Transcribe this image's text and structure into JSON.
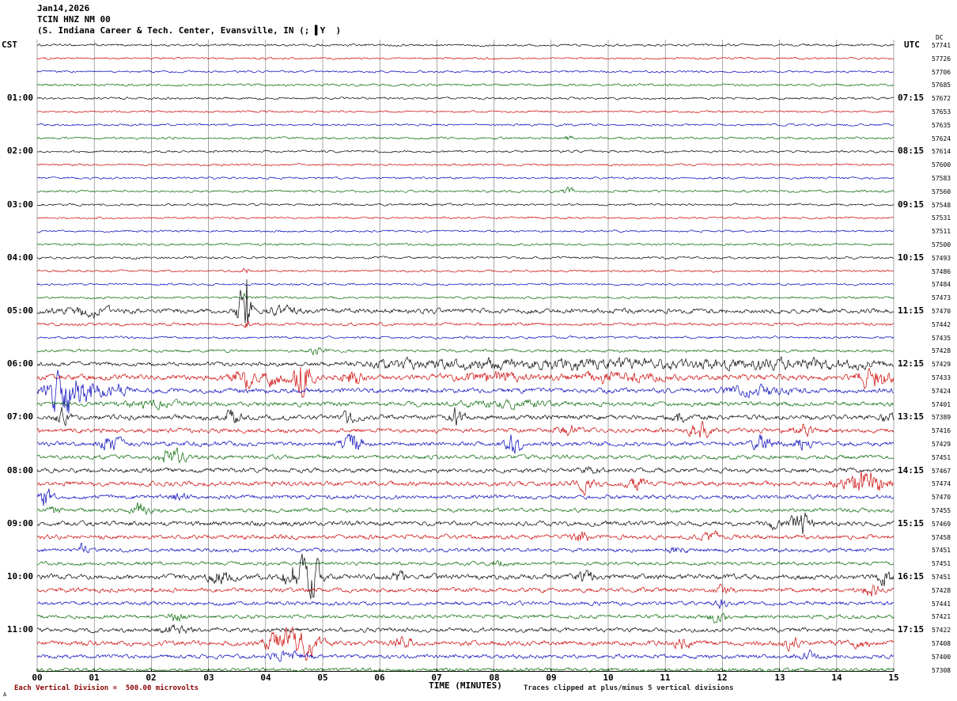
{
  "header": {
    "date": "Jan14,2026",
    "station": "TCIN HNZ NM 00",
    "location": "(S. Indiana Career & Tech. Center, Evansville, IN (; ▌Y  )"
  },
  "footer": {
    "left_mark": "A",
    "left": "Each Vertical Division =  500.00 microvolts",
    "right": "Traces clipped at plus/minus 5 vertical divisions"
  },
  "chart_data": {
    "type": "line",
    "title": "TCIN HNZ NM 00 helicorder seismogram",
    "x_label": "TIME (MINUTES)",
    "x_range": [
      0,
      15
    ],
    "x_ticks": [
      "00",
      "01",
      "02",
      "03",
      "04",
      "05",
      "06",
      "07",
      "08",
      "09",
      "10",
      "11",
      "12",
      "13",
      "14",
      "15"
    ],
    "left_axis_label": "CST",
    "right_axis_label": "UTC",
    "right_value_header": "DC",
    "division_microvolts": "500.00",
    "clip_divisions": 5,
    "grid": "on",
    "palette": {
      "black": "#000000",
      "red": "#cc0000",
      "blue": "#0000bb",
      "green": "#006600",
      "grid": "#6f6f6f"
    },
    "colors_cycle": [
      "black",
      "red",
      "blue",
      "green"
    ],
    "rows": [
      {
        "cst": "",
        "utc": "",
        "dc": "57741",
        "c": "black",
        "n": 0.7,
        "ev": []
      },
      {
        "cst": "",
        "utc": "",
        "dc": "57726",
        "c": "red",
        "n": 0.6,
        "ev": []
      },
      {
        "cst": "",
        "utc": "",
        "dc": "57706",
        "c": "blue",
        "n": 0.65,
        "ev": []
      },
      {
        "cst": "",
        "utc": "",
        "dc": "57685",
        "c": "green",
        "n": 0.7,
        "ev": []
      },
      {
        "cst": "01:00",
        "utc": "07:15",
        "dc": "57672",
        "c": "black",
        "n": 0.7,
        "ev": []
      },
      {
        "cst": "",
        "utc": "",
        "dc": "57653",
        "c": "red",
        "n": 0.6,
        "ev": []
      },
      {
        "cst": "",
        "utc": "",
        "dc": "57635",
        "c": "blue",
        "n": 0.65,
        "ev": []
      },
      {
        "cst": "",
        "utc": "",
        "dc": "57624",
        "c": "green",
        "n": 0.7,
        "ev": [
          [
            9.3,
            1.5,
            0.05
          ]
        ]
      },
      {
        "cst": "02:00",
        "utc": "08:15",
        "dc": "57614",
        "c": "black",
        "n": 0.7,
        "ev": []
      },
      {
        "cst": "",
        "utc": "",
        "dc": "57600",
        "c": "red",
        "n": 0.6,
        "ev": []
      },
      {
        "cst": "",
        "utc": "",
        "dc": "57583",
        "c": "blue",
        "n": 0.65,
        "ev": []
      },
      {
        "cst": "",
        "utc": "",
        "dc": "57560",
        "c": "green",
        "n": 0.7,
        "ev": [
          [
            9.3,
            2.5,
            0.06
          ]
        ]
      },
      {
        "cst": "03:00",
        "utc": "09:15",
        "dc": "57548",
        "c": "black",
        "n": 0.7,
        "ev": []
      },
      {
        "cst": "",
        "utc": "",
        "dc": "57531",
        "c": "red",
        "n": 0.6,
        "ev": []
      },
      {
        "cst": "",
        "utc": "",
        "dc": "57511",
        "c": "blue",
        "n": 0.65,
        "ev": []
      },
      {
        "cst": "",
        "utc": "",
        "dc": "57500",
        "c": "green",
        "n": 0.7,
        "ev": []
      },
      {
        "cst": "04:00",
        "utc": "10:15",
        "dc": "57493",
        "c": "black",
        "n": 0.75,
        "ev": []
      },
      {
        "cst": "",
        "utc": "",
        "dc": "57486",
        "c": "red",
        "n": 0.65,
        "ev": [
          [
            3.65,
            3,
            0.03
          ]
        ]
      },
      {
        "cst": "",
        "utc": "",
        "dc": "57484",
        "c": "blue",
        "n": 0.65,
        "ev": []
      },
      {
        "cst": "",
        "utc": "",
        "dc": "57473",
        "c": "green",
        "n": 0.7,
        "ev": [
          [
            3.65,
            4,
            0.03
          ]
        ]
      },
      {
        "cst": "05:00",
        "utc": "11:15",
        "dc": "57470",
        "c": "black",
        "n": 1.5,
        "ev": [
          [
            0.9,
            2.5,
            0.3
          ],
          [
            3.55,
            8,
            0.05
          ],
          [
            3.67,
            36,
            0.05
          ],
          [
            4.3,
            2,
            0.2
          ]
        ]
      },
      {
        "cst": "",
        "utc": "",
        "dc": "57442",
        "c": "red",
        "n": 0.9,
        "ev": [
          [
            3.67,
            2.5,
            0.04
          ]
        ]
      },
      {
        "cst": "",
        "utc": "",
        "dc": "57435",
        "c": "blue",
        "n": 0.75,
        "ev": []
      },
      {
        "cst": "",
        "utc": "",
        "dc": "57428",
        "c": "green",
        "n": 0.85,
        "ev": [
          [
            4.9,
            2.5,
            0.08
          ]
        ]
      },
      {
        "cst": "06:00",
        "utc": "12:15",
        "dc": "57429",
        "c": "black",
        "n": 1.3,
        "ev": [
          [
            6.2,
            2,
            0.5
          ],
          [
            7.6,
            2.2,
            0.6
          ],
          [
            9.2,
            2.2,
            0.8
          ],
          [
            11.3,
            2.2,
            1.0
          ],
          [
            13.6,
            2.4,
            0.9
          ]
        ]
      },
      {
        "cst": "",
        "utc": "",
        "dc": "57433",
        "c": "red",
        "n": 1.7,
        "ev": [
          [
            3.6,
            6,
            0.12
          ],
          [
            4.1,
            4,
            0.15
          ],
          [
            4.65,
            13,
            0.1
          ],
          [
            5.5,
            5,
            0.12
          ],
          [
            7.9,
            2.5,
            0.4
          ],
          [
            10.1,
            2.5,
            0.5
          ],
          [
            14.65,
            7,
            0.18
          ]
        ]
      },
      {
        "cst": "",
        "utc": "",
        "dc": "57424",
        "c": "blue",
        "n": 1.5,
        "ev": [
          [
            0.45,
            15,
            0.18
          ],
          [
            0.85,
            7,
            0.15
          ],
          [
            1.35,
            3.5,
            0.2
          ],
          [
            12.6,
            2.2,
            0.4
          ]
        ]
      },
      {
        "cst": "",
        "utc": "",
        "dc": "57401",
        "c": "green",
        "n": 1.4,
        "ev": [
          [
            2.0,
            2,
            0.3
          ],
          [
            8.2,
            1.8,
            0.5
          ]
        ]
      },
      {
        "cst": "07:00",
        "utc": "13:15",
        "dc": "57389",
        "c": "black",
        "n": 1.5,
        "ev": [
          [
            0.45,
            5,
            0.08
          ],
          [
            3.4,
            4.5,
            0.1
          ],
          [
            5.45,
            3.5,
            0.08
          ],
          [
            7.35,
            5.5,
            0.08
          ],
          [
            11.2,
            3.5,
            0.1
          ],
          [
            14.9,
            2.5,
            0.08
          ]
        ]
      },
      {
        "cst": "",
        "utc": "",
        "dc": "57416",
        "c": "red",
        "n": 1.35,
        "ev": [
          [
            9.3,
            2.5,
            0.15
          ],
          [
            11.6,
            5,
            0.12
          ],
          [
            13.4,
            4,
            0.12
          ]
        ]
      },
      {
        "cst": "",
        "utc": "",
        "dc": "57429",
        "c": "blue",
        "n": 1.35,
        "ev": [
          [
            1.3,
            5,
            0.12
          ],
          [
            5.5,
            6,
            0.12
          ],
          [
            8.35,
            6,
            0.1
          ],
          [
            12.7,
            5,
            0.12
          ],
          [
            13.4,
            3.5,
            0.1
          ]
        ]
      },
      {
        "cst": "",
        "utc": "",
        "dc": "57451",
        "c": "green",
        "n": 1.25,
        "ev": [
          [
            2.35,
            5,
            0.15
          ]
        ]
      },
      {
        "cst": "08:00",
        "utc": "14:15",
        "dc": "57467",
        "c": "black",
        "n": 1.35,
        "ev": [
          [
            9.7,
            2.5,
            0.1
          ]
        ]
      },
      {
        "cst": "",
        "utc": "",
        "dc": "57474",
        "c": "red",
        "n": 1.45,
        "ev": [
          [
            9.6,
            4,
            0.1
          ],
          [
            10.5,
            3.5,
            0.1
          ],
          [
            14.5,
            8,
            0.25
          ]
        ]
      },
      {
        "cst": "",
        "utc": "",
        "dc": "57470",
        "c": "blue",
        "n": 1.25,
        "ev": [
          [
            0.15,
            6,
            0.08
          ],
          [
            2.5,
            2.5,
            0.1
          ]
        ]
      },
      {
        "cst": "",
        "utc": "",
        "dc": "57455",
        "c": "green",
        "n": 1.2,
        "ev": [
          [
            0.3,
            2.5,
            0.08
          ],
          [
            1.8,
            4,
            0.1
          ]
        ]
      },
      {
        "cst": "09:00",
        "utc": "15:15",
        "dc": "57469",
        "c": "black",
        "n": 1.45,
        "ev": [
          [
            12.9,
            2.5,
            0.1
          ],
          [
            13.35,
            8,
            0.12
          ]
        ]
      },
      {
        "cst": "",
        "utc": "",
        "dc": "57458",
        "c": "red",
        "n": 1.35,
        "ev": [
          [
            9.5,
            3.5,
            0.1
          ],
          [
            11.8,
            2.5,
            0.1
          ]
        ]
      },
      {
        "cst": "",
        "utc": "",
        "dc": "57451",
        "c": "blue",
        "n": 1.2,
        "ev": [
          [
            0.8,
            3.5,
            0.06
          ],
          [
            11.2,
            2,
            0.1
          ]
        ]
      },
      {
        "cst": "",
        "utc": "",
        "dc": "57451",
        "c": "green",
        "n": 1.1,
        "ev": [
          [
            8.1,
            1.8,
            0.1
          ]
        ]
      },
      {
        "cst": "10:00",
        "utc": "16:15",
        "dc": "57451",
        "c": "black",
        "n": 1.6,
        "ev": [
          [
            3.2,
            3.5,
            0.15
          ],
          [
            4.55,
            11,
            0.15
          ],
          [
            4.85,
            9,
            0.1
          ],
          [
            6.3,
            2.5,
            0.1
          ],
          [
            9.6,
            3.5,
            0.1
          ],
          [
            14.85,
            5,
            0.08
          ]
        ]
      },
      {
        "cst": "",
        "utc": "",
        "dc": "57428",
        "c": "red",
        "n": 1.35,
        "ev": [
          [
            12.0,
            2.5,
            0.1
          ],
          [
            14.6,
            3.5,
            0.1
          ]
        ]
      },
      {
        "cst": "",
        "utc": "",
        "dc": "57441",
        "c": "blue",
        "n": 1.2,
        "ev": [
          [
            12.0,
            2.5,
            0.08
          ]
        ]
      },
      {
        "cst": "",
        "utc": "",
        "dc": "57421",
        "c": "green",
        "n": 1.15,
        "ev": [
          [
            2.4,
            2.5,
            0.1
          ],
          [
            11.9,
            3.5,
            0.1
          ]
        ]
      },
      {
        "cst": "11:00",
        "utc": "17:15",
        "dc": "57422",
        "c": "black",
        "n": 1.35,
        "ev": [
          [
            2.4,
            2.5,
            0.15
          ]
        ]
      },
      {
        "cst": "",
        "utc": "",
        "dc": "57408",
        "c": "red",
        "n": 1.5,
        "ev": [
          [
            4.3,
            7,
            0.2
          ],
          [
            4.75,
            6,
            0.15
          ],
          [
            6.4,
            3.5,
            0.1
          ],
          [
            11.3,
            3.5,
            0.1
          ],
          [
            13.2,
            3.5,
            0.1
          ],
          [
            14.4,
            2.5,
            0.1
          ]
        ]
      },
      {
        "cst": "",
        "utc": "",
        "dc": "57400",
        "c": "blue",
        "n": 1.25,
        "ev": [
          [
            4.4,
            2.5,
            0.2
          ],
          [
            13.5,
            2.5,
            0.1
          ]
        ]
      },
      {
        "cst": "",
        "utc": "",
        "dc": "57308",
        "c": "green",
        "n": 1.1,
        "ev": []
      }
    ]
  }
}
